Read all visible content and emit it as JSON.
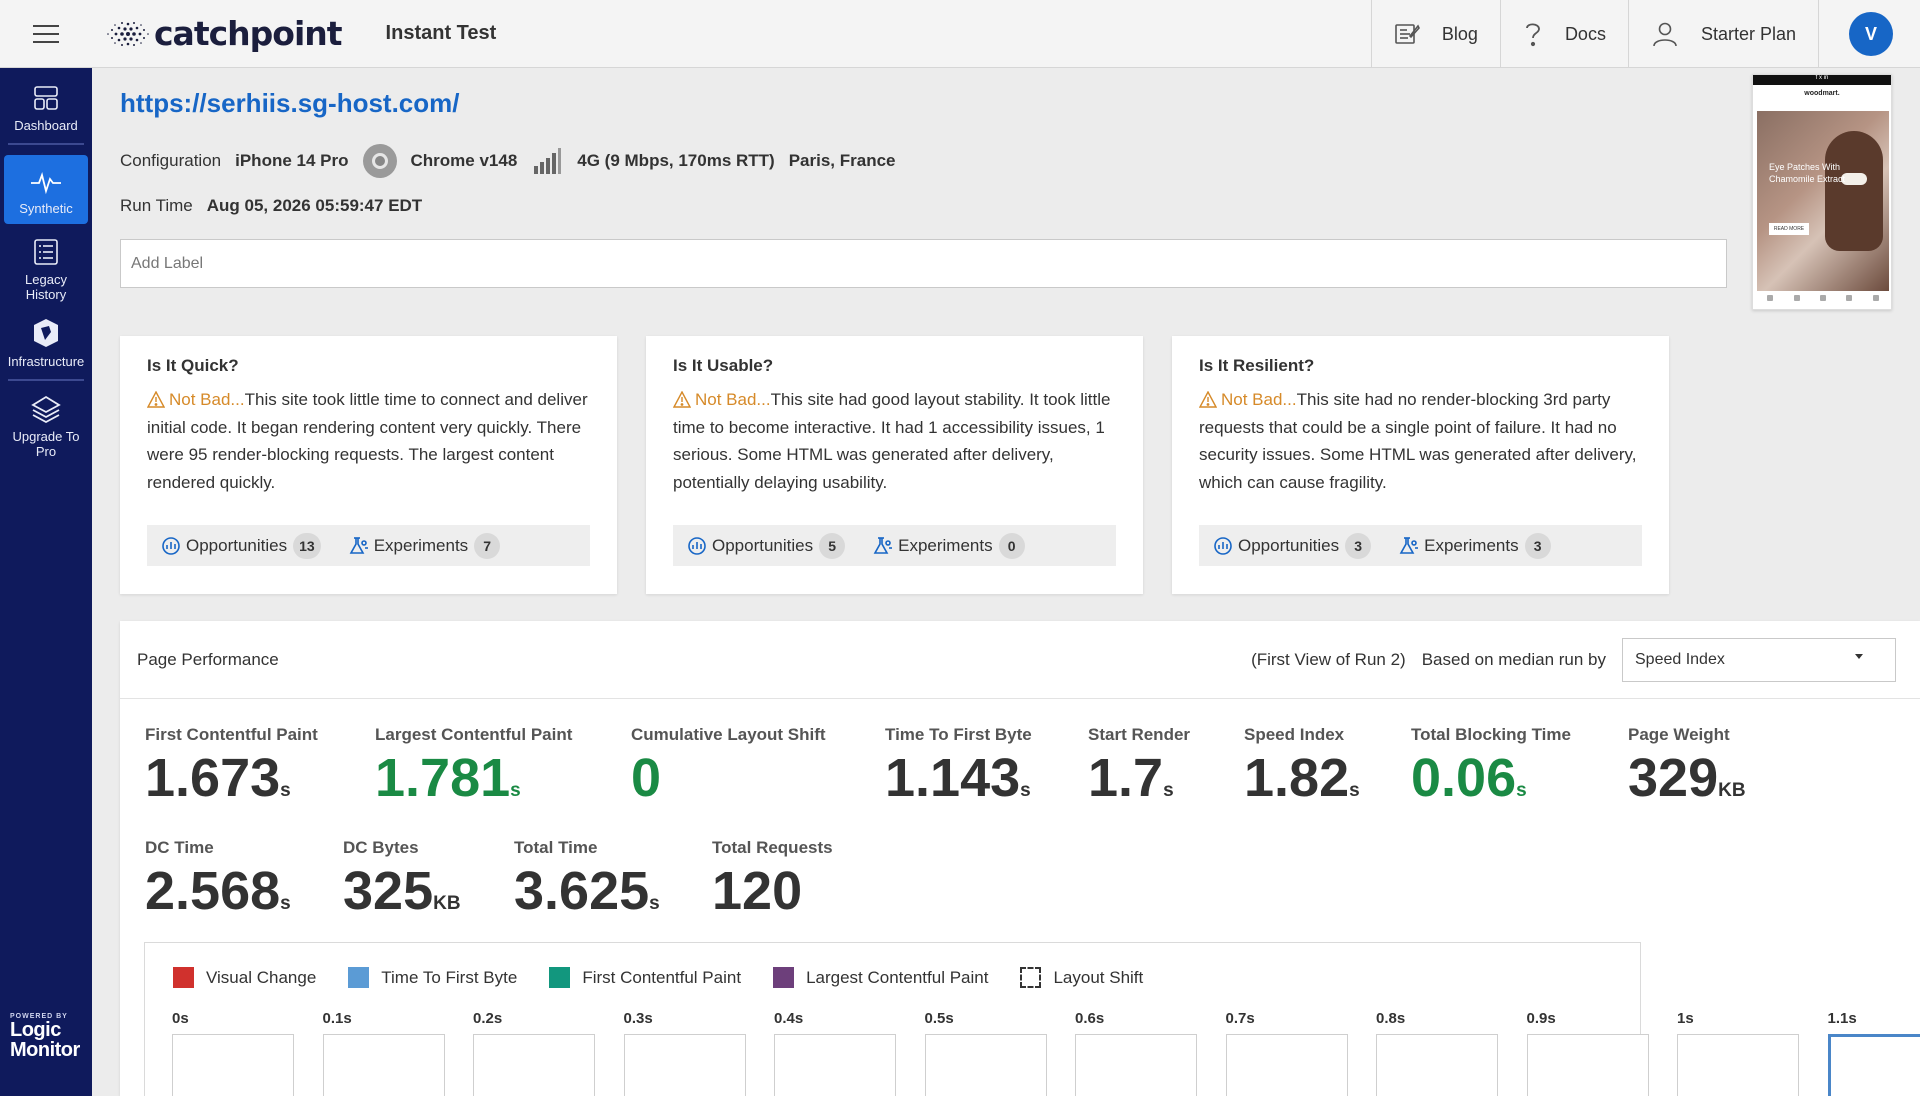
{
  "topbar": {
    "brand": "catchpoint",
    "app_title": "Instant Test",
    "blog": "Blog",
    "docs": "Docs",
    "plan": "Starter Plan",
    "avatar_initial": "V",
    "avatar_color": "#1766c6"
  },
  "sidebar": {
    "items": [
      {
        "label": "Dashboard",
        "icon": "dashboard-icon"
      },
      {
        "label": "Synthetic",
        "icon": "pulse-icon",
        "active": true
      },
      {
        "label": "Legacy History",
        "icon": "list-icon"
      },
      {
        "label": "Infrastructure",
        "icon": "infrastructure-icon"
      },
      {
        "label": "Upgrade To Pro",
        "icon": "layers-icon"
      }
    ],
    "powered_by": "POWERED BY",
    "powered_brand_1": "Logic",
    "powered_brand_2": "Monitor"
  },
  "test": {
    "url": "https://serhiis.sg-host.com/",
    "config_label": "Configuration",
    "device": "iPhone 14 Pro",
    "browser": "Chrome v148",
    "network": "4G (9 Mbps, 170ms RTT)",
    "location": "Paris, France",
    "run_time_label": "Run Time",
    "run_time": "Aug 05, 2026 05:59:47 EDT",
    "label_placeholder": "Add Label"
  },
  "thumbnail": {
    "brand": "woodmart.",
    "headline": "Eye Patches With Chamomile Extract",
    "button": "READ MORE"
  },
  "cards": [
    {
      "title": "Is It Quick?",
      "verdict": "Not Bad...",
      "text": "This site took little time to connect and deliver initial code. It began rendering content very quickly. There were 95 render-blocking requests. The largest content rendered quickly.",
      "opportunities_label": "Opportunities",
      "opportunities": "13",
      "experiments_label": "Experiments",
      "experiments": "7"
    },
    {
      "title": "Is It Usable?",
      "verdict": "Not Bad...",
      "text": "This site had good layout stability. It took little time to become interactive. It had 1 accessibility issues, 1 serious. Some HTML was generated after delivery, potentially delaying usability.",
      "opportunities_label": "Opportunities",
      "opportunities": "5",
      "experiments_label": "Experiments",
      "experiments": "0"
    },
    {
      "title": "Is It Resilient?",
      "verdict": "Not Bad...",
      "text": "This site had no render-blocking 3rd party requests that could be a single point of failure. It had no security issues. Some HTML was generated after delivery, which can cause fragility.",
      "opportunities_label": "Opportunities",
      "opportunities": "3",
      "experiments_label": "Experiments",
      "experiments": "3"
    }
  ],
  "performance": {
    "title": "Page Performance",
    "view_note": "(First View of Run 2)",
    "median_label": "Based on median run by",
    "median_metric": "Speed Index",
    "metrics_row1": [
      {
        "label": "First Contentful Paint",
        "value": "1.673",
        "unit": "s"
      },
      {
        "label": "Largest Contentful Paint",
        "value": "1.781",
        "unit": "s",
        "good": true
      },
      {
        "label": "Cumulative Layout Shift",
        "value": "0",
        "unit": "",
        "good": true
      },
      {
        "label": "Time To First Byte",
        "value": "1.143",
        "unit": "s"
      },
      {
        "label": "Start Render",
        "value": "1.7",
        "unit": "s"
      },
      {
        "label": "Speed Index",
        "value": "1.82",
        "unit": "s"
      },
      {
        "label": "Total Blocking Time",
        "value": "0.06",
        "unit": "s",
        "good": true
      },
      {
        "label": "Page Weight",
        "value": "329",
        "unit": "KB"
      }
    ],
    "metrics_row2": [
      {
        "label": "DC Time",
        "value": "2.568",
        "unit": "s"
      },
      {
        "label": "DC Bytes",
        "value": "325",
        "unit": "KB"
      },
      {
        "label": "Total Time",
        "value": "3.625",
        "unit": "s"
      },
      {
        "label": "Total Requests",
        "value": "120",
        "unit": ""
      }
    ],
    "good_color": "#1a8a44",
    "legend": [
      {
        "label": "Visual Change",
        "color": "#d0312d"
      },
      {
        "label": "Time To First Byte",
        "color": "#5b9bd5"
      },
      {
        "label": "First Contentful Paint",
        "color": "#12977e"
      },
      {
        "label": "Largest Contentful Paint",
        "color": "#6d3f7b"
      },
      {
        "label": "Layout Shift",
        "color": "dashed"
      }
    ],
    "timeline_ticks": [
      "0s",
      "0.1s",
      "0.2s",
      "0.3s",
      "0.4s",
      "0.5s",
      "0.6s",
      "0.7s",
      "0.8s",
      "0.9s",
      "1s",
      "1.1s"
    ]
  }
}
